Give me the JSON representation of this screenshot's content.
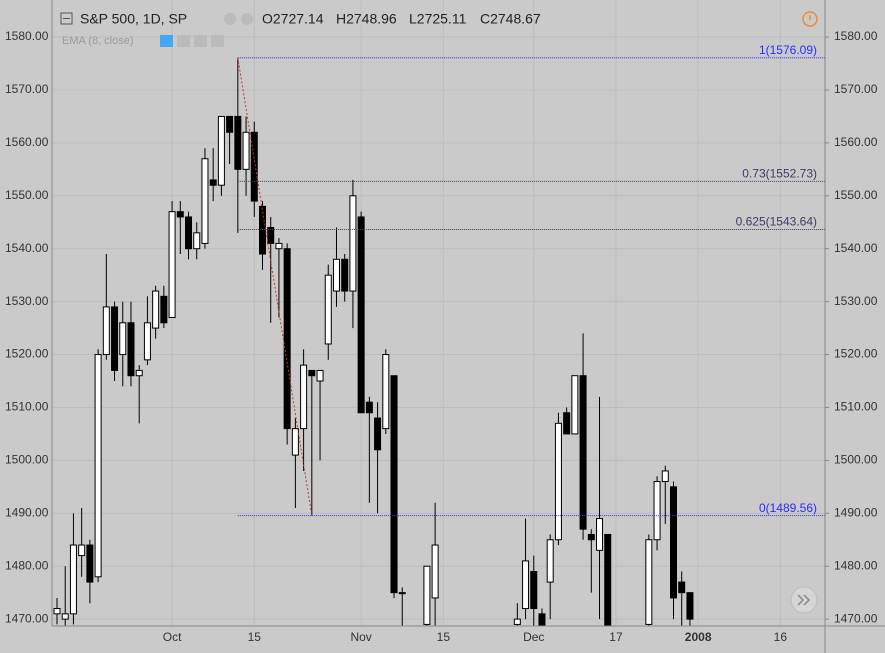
{
  "chart_data": {
    "type": "candlestick",
    "title": "S&P 500, 1D, SP",
    "ohlc_labels": [
      "O2727.14",
      "H2748.96",
      "L2725.11",
      "C2748.67"
    ],
    "indicator": "EMA (8, close)",
    "categories": [
      null,
      null,
      null,
      null,
      null,
      null,
      null,
      null,
      null,
      null,
      null,
      null,
      null,
      null,
      "Oct",
      null,
      null,
      null,
      null,
      null,
      null,
      null,
      null,
      null,
      "15",
      null,
      null,
      null,
      null,
      null,
      null,
      null,
      null,
      null,
      null,
      null,
      null,
      "Nov",
      null,
      null,
      null,
      null,
      null,
      null,
      null,
      null,
      null,
      "15",
      null,
      null,
      null,
      null,
      null,
      null,
      null,
      null,
      null,
      null,
      "Dec",
      null,
      null,
      null,
      null,
      null,
      null,
      null,
      null,
      null,
      "17",
      null,
      null,
      null,
      null,
      null,
      null,
      null,
      null,
      null,
      "2008",
      null,
      null,
      null,
      null,
      null,
      null,
      null,
      null,
      null,
      "16",
      null,
      null,
      null,
      null,
      null
    ],
    "open": [
      1471,
      1470,
      1471,
      1482,
      1484,
      1478,
      1520,
      1529,
      1520,
      1526,
      1516,
      1519,
      1525,
      1531,
      1527,
      1547,
      1546,
      1540,
      1541,
      1553,
      1552,
      1565,
      1565,
      1555,
      1562,
      1548,
      1544,
      1540,
      1540,
      1501,
      1506,
      1517,
      1515,
      1522,
      1532,
      1538,
      1532,
      1546,
      1511,
      1508,
      1506,
      1516,
      1475,
      null,
      null,
      1469,
      1474,
      null,
      null,
      null,
      null,
      null,
      null,
      null,
      null,
      null,
      1469,
      1472,
      1479,
      1471,
      1477,
      1485,
      1509,
      1505,
      1516,
      1486,
      1483,
      1486,
      null,
      null,
      null,
      null,
      1469,
      1485,
      1496,
      1495,
      1477,
      1475,
      null,
      null,
      null,
      null,
      null,
      null,
      null,
      null,
      null,
      null,
      null,
      null,
      null,
      null,
      null,
      null
    ],
    "high": [
      1474,
      1480,
      1490,
      1491,
      1485,
      1521,
      1539,
      1530,
      1530,
      1530,
      1518,
      1531,
      1533,
      1533,
      1549,
      1549,
      1547,
      1545,
      1559,
      1559,
      1565,
      1565,
      1576.09,
      1565,
      1564,
      1549,
      1546,
      1542,
      1541,
      1508,
      1521,
      1517,
      1517,
      1537,
      1544,
      1539,
      1553,
      1547,
      1512,
      1511,
      1521,
      1516,
      1476,
      null,
      null,
      1480,
      1492,
      null,
      null,
      null,
      null,
      null,
      null,
      null,
      null,
      null,
      1473,
      1489,
      1482,
      1472,
      1486,
      1509,
      1510,
      1516,
      1524,
      1487,
      1512,
      1486,
      null,
      null,
      null,
      null,
      1486,
      1497,
      1499,
      1496,
      1479,
      1475,
      null,
      null,
      null,
      null,
      null,
      null,
      null,
      null,
      null,
      null,
      null,
      null,
      null,
      null,
      null,
      null
    ],
    "low": [
      1469,
      1468,
      1469,
      1478,
      1473,
      1477,
      1519,
      1515,
      1514,
      1514,
      1507,
      1518,
      1523,
      1525,
      1527,
      1539,
      1538,
      1538,
      1540,
      1549,
      1550,
      1556,
      1543,
      1550,
      1546,
      1536,
      1526,
      1527,
      1503,
      1491,
      1498,
      1489.56,
      1500,
      1519,
      1529,
      1530,
      1525,
      1509,
      1492,
      1490,
      1505,
      1474,
      1468,
      null,
      null,
      1468,
      1468,
      null,
      null,
      null,
      null,
      null,
      null,
      null,
      null,
      null,
      1468,
      1470,
      1468,
      1468,
      1470,
      1484,
      1505,
      1505,
      1485,
      1475,
      1470,
      1468,
      null,
      null,
      null,
      null,
      1468,
      1483,
      1488,
      1470,
      1468,
      1468,
      null,
      null,
      null,
      null,
      null,
      null,
      null,
      null,
      null,
      null,
      null,
      null,
      null,
      null,
      null,
      null
    ],
    "close": [
      1472,
      1471,
      1484,
      1484,
      1477,
      1520,
      1529,
      1517,
      1526,
      1516,
      1517,
      1526,
      1532,
      1526,
      1547,
      1546,
      1540,
      1543,
      1557,
      1552,
      1565,
      1562,
      1555,
      1562,
      1549,
      1539,
      1541,
      1541,
      1506,
      1506,
      1518,
      1516,
      1517,
      1535,
      1538,
      1532,
      1550,
      1509,
      1509,
      1502,
      1520,
      1475,
      1475,
      null,
      null,
      1480,
      1484,
      null,
      null,
      null,
      null,
      null,
      null,
      null,
      null,
      null,
      1470,
      1481,
      1472,
      1468,
      1485,
      1507,
      1505,
      1516,
      1487,
      1485,
      1489,
      1468,
      null,
      null,
      null,
      null,
      1485,
      1496,
      1498,
      1474,
      1475,
      1470,
      null,
      null,
      null,
      null,
      null,
      null,
      null,
      null,
      null,
      null,
      null,
      null,
      null,
      null,
      null,
      null
    ],
    "up_color": "#ffffff",
    "down_color": "#000000",
    "ylim": [
      1468.7,
      1587.0
    ],
    "yticks": [
      {
        "value": 1470,
        "label": "1470.00"
      },
      {
        "value": 1480,
        "label": "1480.00"
      },
      {
        "value": 1490,
        "label": "1490.00"
      },
      {
        "value": 1500,
        "label": "1500.00"
      },
      {
        "value": 1510,
        "label": "1510.00"
      },
      {
        "value": 1520,
        "label": "1520.00"
      },
      {
        "value": 1530,
        "label": "1530.00"
      },
      {
        "value": 1540,
        "label": "1540.00"
      },
      {
        "value": 1550,
        "label": "1550.00"
      },
      {
        "value": 1560,
        "label": "1560.00"
      },
      {
        "value": 1570,
        "label": "1570.00"
      },
      {
        "value": 1580,
        "label": "1580.00"
      }
    ],
    "grid": true,
    "fib_levels": [
      {
        "price": 1576.09,
        "label": "1(1576.09)",
        "color": "#2b2bff"
      },
      {
        "price": 1552.73,
        "label": "0.73(1552.73)",
        "color": "#3c3c66"
      },
      {
        "price": 1543.64,
        "label": "0.625(1543.64)",
        "color": "#3c3c66"
      },
      {
        "price": 1489.56,
        "label": "0(1489.56)",
        "color": "#2b2bff"
      }
    ],
    "fib_start_index": 22,
    "trend_line": {
      "from_index": 22,
      "to_index": 31,
      "color": "#c0392b"
    }
  }
}
